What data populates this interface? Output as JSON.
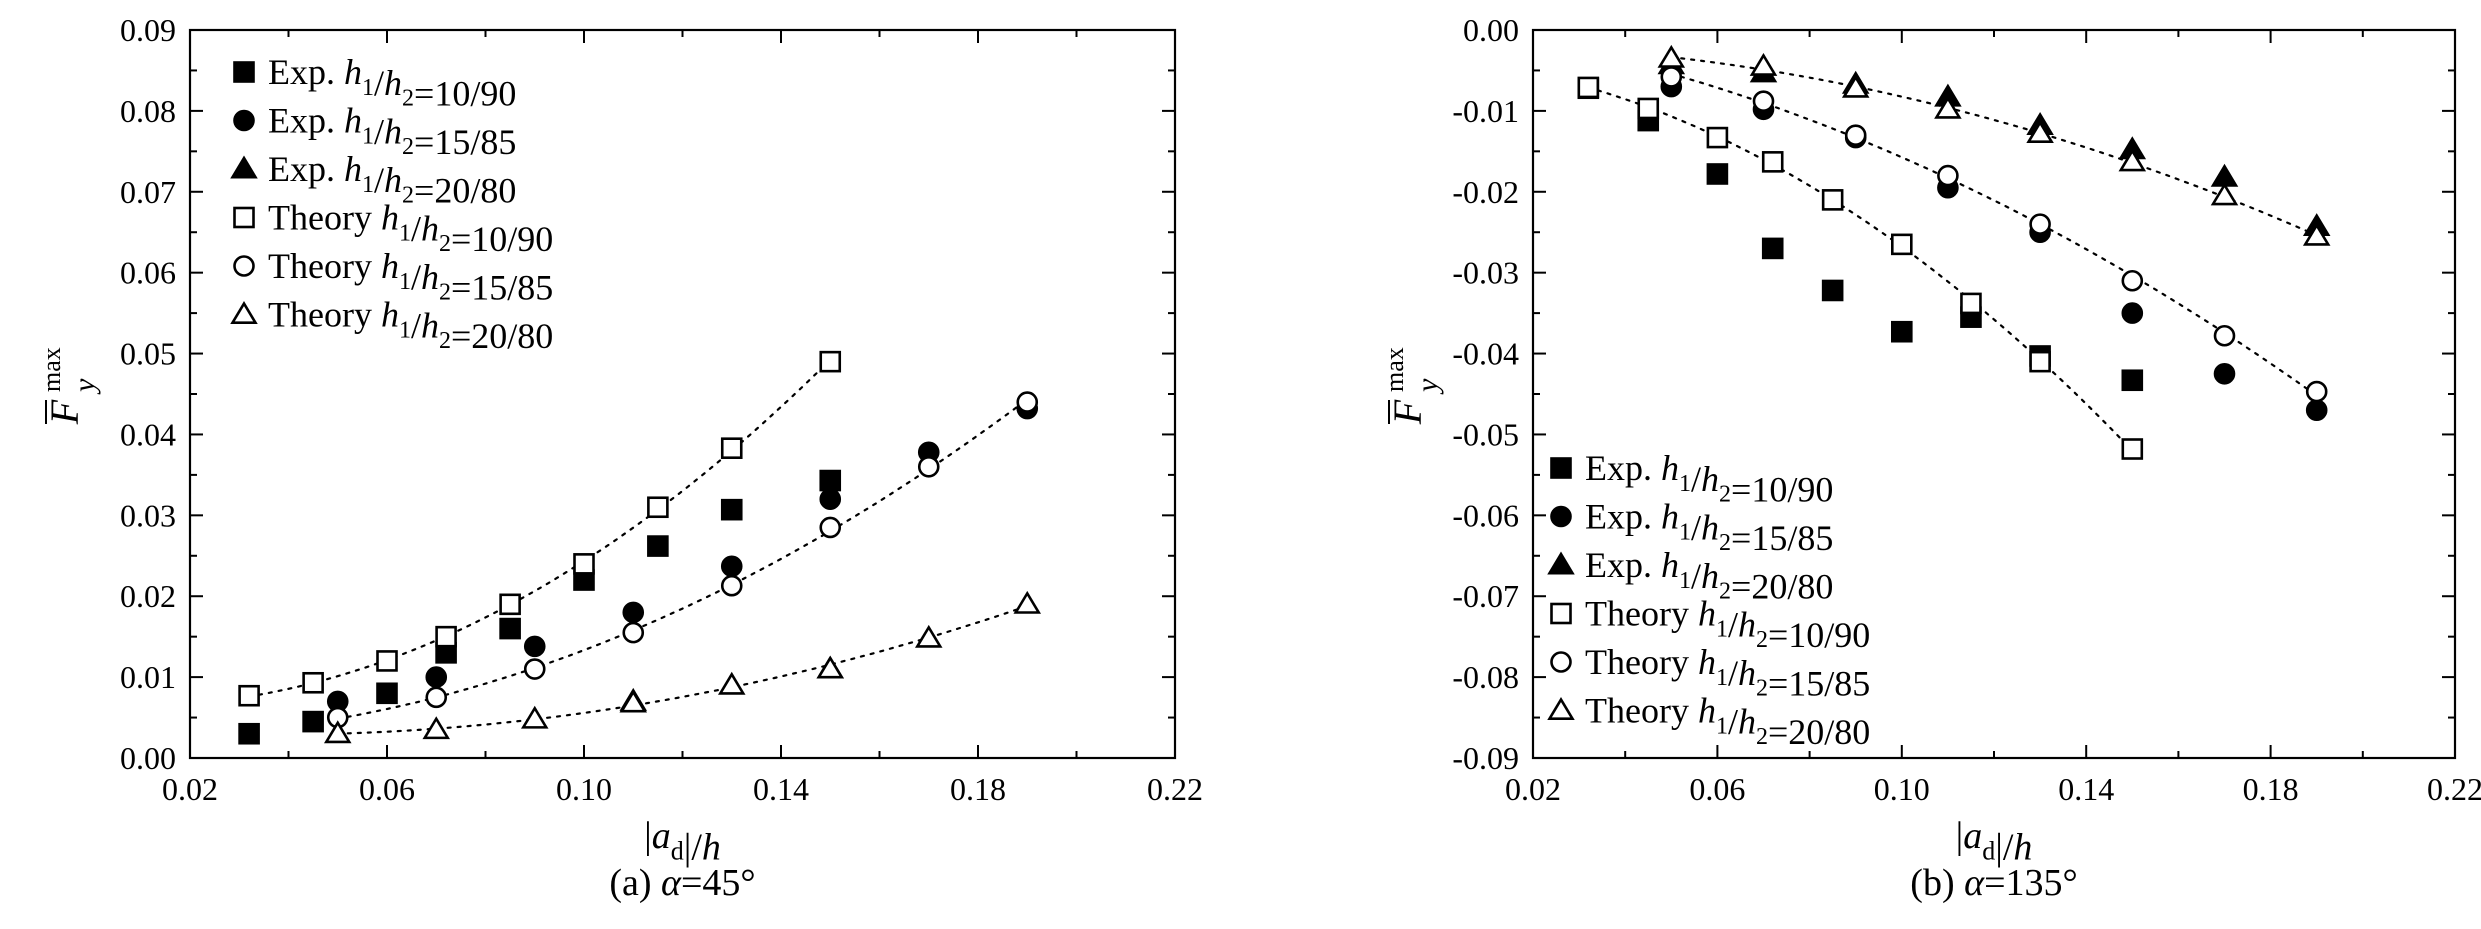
{
  "chart_data": [
    {
      "type": "scatter",
      "caption": "(a) α=45°",
      "xlabel": "|ad|/h",
      "ylabel": "F̄y max",
      "xlim": [
        0.02,
        0.22
      ],
      "ylim": [
        0.0,
        0.09
      ],
      "x_ticks": [
        "0.02",
        "0.06",
        "0.10",
        "0.14",
        "0.18",
        "0.22"
      ],
      "y_ticks": [
        "0.00",
        "0.01",
        "0.02",
        "0.03",
        "0.04",
        "0.05",
        "0.06",
        "0.07",
        "0.08",
        "0.09"
      ],
      "legend_position": "top-left",
      "grid": false,
      "series": [
        {
          "name": "Exp. h1/h2=10/90",
          "marker": "square-filled",
          "x": [
            0.032,
            0.045,
            0.06,
            0.072,
            0.085,
            0.1,
            0.115,
            0.13,
            0.15
          ],
          "y": [
            0.003,
            0.0045,
            0.008,
            0.013,
            0.016,
            0.022,
            0.0262,
            0.0307,
            0.0343
          ]
        },
        {
          "name": "Exp. h1/h2=15/85",
          "marker": "circle-filled",
          "x": [
            0.05,
            0.07,
            0.09,
            0.11,
            0.13,
            0.15,
            0.17,
            0.19
          ],
          "y": [
            0.007,
            0.01,
            0.0138,
            0.018,
            0.0237,
            0.032,
            0.0378,
            0.0432
          ]
        },
        {
          "name": "Exp. h1/h2=20/80",
          "marker": "triangle-filled",
          "x": [
            0.11,
            0.15
          ],
          "y": [
            0.007,
            0.011
          ]
        },
        {
          "name": "Theory h1/h2=10/90",
          "marker": "square-open",
          "x": [
            0.032,
            0.045,
            0.06,
            0.072,
            0.085,
            0.1,
            0.115,
            0.13,
            0.15
          ],
          "y": [
            0.0077,
            0.0093,
            0.012,
            0.015,
            0.019,
            0.024,
            0.031,
            0.0383,
            0.049
          ]
        },
        {
          "name": "Theory h1/h2=15/85",
          "marker": "circle-open",
          "x": [
            0.05,
            0.07,
            0.09,
            0.11,
            0.13,
            0.15,
            0.17,
            0.19
          ],
          "y": [
            0.005,
            0.0075,
            0.011,
            0.0155,
            0.0213,
            0.0285,
            0.036,
            0.044
          ]
        },
        {
          "name": "Theory h1/h2=20/80",
          "marker": "triangle-open",
          "x": [
            0.05,
            0.07,
            0.09,
            0.11,
            0.13,
            0.15,
            0.17,
            0.19
          ],
          "y": [
            0.003,
            0.0035,
            0.0048,
            0.0068,
            0.009,
            0.011,
            0.0148,
            0.019
          ]
        }
      ]
    },
    {
      "type": "scatter",
      "caption": "(b) α=135°",
      "xlabel": "|ad|/h",
      "ylabel": "F̄y max",
      "xlim": [
        0.02,
        0.22
      ],
      "ylim": [
        -0.09,
        0.0
      ],
      "x_ticks": [
        "0.02",
        "0.06",
        "0.10",
        "0.14",
        "0.18",
        "0.22"
      ],
      "y_ticks": [
        "0.00",
        "-0.01",
        "-0.02",
        "-0.03",
        "-0.04",
        "-0.05",
        "-0.06",
        "-0.07",
        "-0.08",
        "-0.09"
      ],
      "legend_position": "bottom-left",
      "grid": false,
      "series": [
        {
          "name": "Exp. h1/h2=10/90",
          "marker": "square-filled",
          "x": [
            0.032,
            0.045,
            0.06,
            0.072,
            0.085,
            0.1,
            0.115,
            0.13,
            0.15
          ],
          "y": [
            -0.0072,
            -0.0112,
            -0.0178,
            -0.027,
            -0.0322,
            -0.0373,
            -0.0355,
            -0.0403,
            -0.0433
          ]
        },
        {
          "name": "Exp. h1/h2=15/85",
          "marker": "circle-filled",
          "x": [
            0.05,
            0.07,
            0.09,
            0.11,
            0.13,
            0.15,
            0.17,
            0.19
          ],
          "y": [
            -0.007,
            -0.0098,
            -0.0133,
            -0.0195,
            -0.025,
            -0.035,
            -0.0425,
            -0.047
          ]
        },
        {
          "name": "Exp. h1/h2=20/80",
          "marker": "triangle-filled",
          "x": [
            0.05,
            0.07,
            0.09,
            0.11,
            0.13,
            0.15,
            0.17,
            0.19
          ],
          "y": [
            -0.0043,
            -0.0053,
            -0.0067,
            -0.0083,
            -0.0118,
            -0.0148,
            -0.0182,
            -0.0243
          ]
        },
        {
          "name": "Theory h1/h2=10/90",
          "marker": "square-open",
          "x": [
            0.032,
            0.045,
            0.06,
            0.072,
            0.085,
            0.1,
            0.115,
            0.13,
            0.15
          ],
          "y": [
            -0.0071,
            -0.0097,
            -0.0133,
            -0.0163,
            -0.021,
            -0.0265,
            -0.0338,
            -0.041,
            -0.0518
          ]
        },
        {
          "name": "Theory h1/h2=15/85",
          "marker": "circle-open",
          "x": [
            0.05,
            0.07,
            0.09,
            0.11,
            0.13,
            0.15,
            0.17,
            0.19
          ],
          "y": [
            -0.0058,
            -0.0088,
            -0.013,
            -0.018,
            -0.024,
            -0.031,
            -0.0378,
            -0.0447
          ]
        },
        {
          "name": "Theory h1/h2=20/80",
          "marker": "triangle-open",
          "x": [
            0.05,
            0.07,
            0.09,
            0.11,
            0.13,
            0.15,
            0.17,
            0.19
          ],
          "y": [
            -0.0035,
            -0.0045,
            -0.0072,
            -0.0098,
            -0.0128,
            -0.0163,
            -0.0205,
            -0.0255
          ]
        }
      ]
    }
  ]
}
